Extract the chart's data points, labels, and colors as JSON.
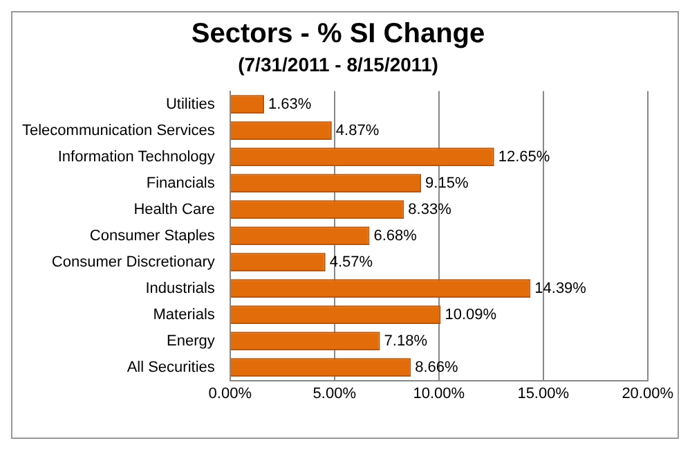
{
  "chart_data": {
    "type": "bar",
    "orientation": "horizontal",
    "title": "Sectors - % SI Change",
    "subtitle": "(7/31/2011 - 8/15/2011)",
    "categories": [
      "Utilities",
      "Telecommunication Services",
      "Information Technology",
      "Financials",
      "Health Care",
      "Consumer Staples",
      "Consumer Discretionary",
      "Industrials",
      "Materials",
      "Energy",
      "All Securities"
    ],
    "values": [
      1.63,
      4.87,
      12.65,
      9.15,
      8.33,
      6.68,
      4.57,
      14.39,
      10.09,
      7.18,
      8.66
    ],
    "value_labels": [
      "1.63%",
      "4.87%",
      "12.65%",
      "9.15%",
      "8.33%",
      "6.68%",
      "4.57%",
      "14.39%",
      "10.09%",
      "7.18%",
      "8.66%"
    ],
    "color": "#e36c0a",
    "xlim": [
      0,
      20
    ],
    "xticks": [
      {
        "value": 0,
        "label": "0.00%"
      },
      {
        "value": 5,
        "label": "5.00%"
      },
      {
        "value": 10,
        "label": "10.00%"
      },
      {
        "value": 15,
        "label": "15.00%"
      },
      {
        "value": 20,
        "label": "20.00%"
      }
    ],
    "grid": "x",
    "legend": false
  }
}
